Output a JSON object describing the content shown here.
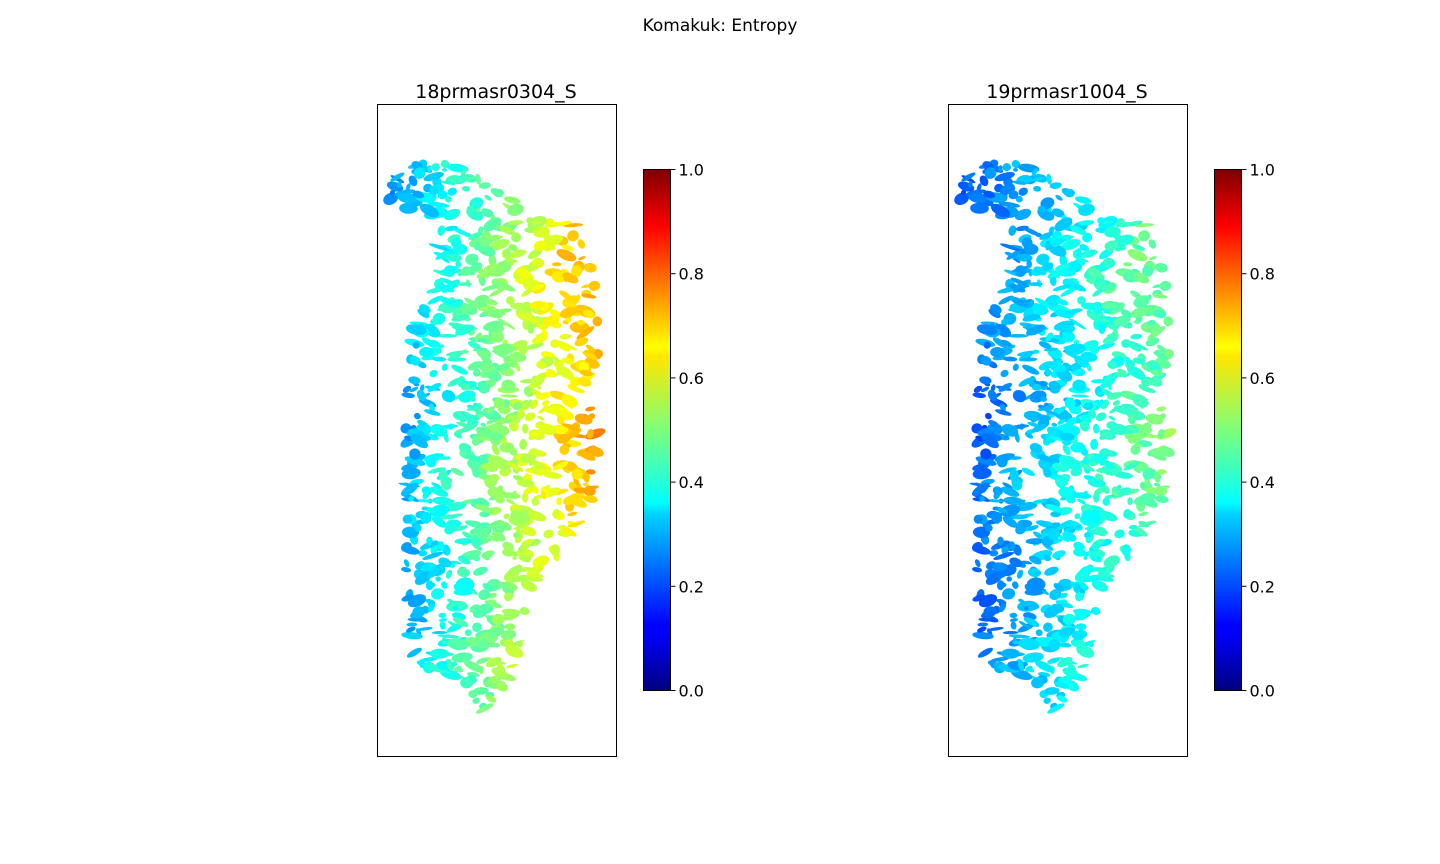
{
  "figure": {
    "suptitle": "Komakuk: Entropy"
  },
  "chart_data": [
    {
      "type": "heatmap",
      "title": "18prmasr0304_S",
      "colormap": "jet",
      "vmin": 0.0,
      "vmax": 1.0,
      "colorbar_ticks": [
        "0.0",
        "0.2",
        "0.4",
        "0.6",
        "0.8",
        "1.0"
      ],
      "grid": false,
      "axes_ticks": false,
      "value_trend": "west side ~0.25-0.45, increasing eastward to ~0.6-0.72 along east edge",
      "value_range": [
        0.2,
        0.75
      ]
    },
    {
      "type": "heatmap",
      "title": "19prmasr1004_S",
      "colormap": "jet",
      "vmin": 0.0,
      "vmax": 1.0,
      "colorbar_ticks": [
        "0.0",
        "0.2",
        "0.4",
        "0.6",
        "0.8",
        "1.0"
      ],
      "grid": false,
      "axes_ticks": false,
      "value_trend": "west side ~0.2-0.3, increasing eastward to ~0.4-0.5 along east edge",
      "value_range": [
        0.15,
        0.52
      ]
    }
  ]
}
